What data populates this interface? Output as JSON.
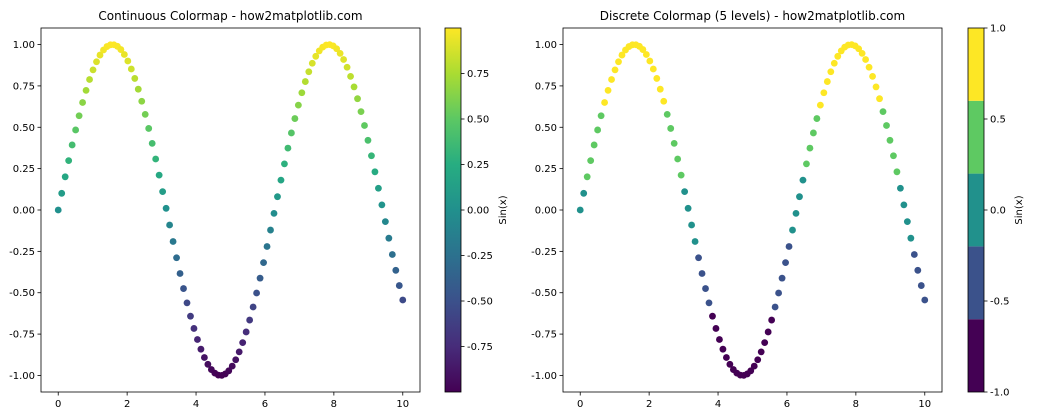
{
  "chart_data": [
    {
      "type": "scatter",
      "title": "Continuous Colormap - how2matplotlib.com",
      "xlabel": "",
      "ylabel": "",
      "xlim": [
        -0.5,
        10.5
      ],
      "ylim": [
        -1.1,
        1.1
      ],
      "x_ticks": [
        0,
        2,
        4,
        6,
        8,
        10
      ],
      "y_ticks": [
        -1.0,
        -0.75,
        -0.5,
        -0.25,
        0.0,
        0.25,
        0.5,
        0.75,
        1.0
      ],
      "y_tick_labels": [
        "-1.00",
        "-0.75",
        "-0.50",
        "-0.25",
        "0.00",
        "0.25",
        "0.50",
        "0.75",
        "1.00"
      ],
      "series": [
        {
          "function": "sin",
          "x_start": 0,
          "x_end": 10,
          "count": 100,
          "color_by": "y"
        }
      ],
      "colormap": "viridis",
      "colorbar": {
        "label": "Sin(x)",
        "type": "continuous",
        "range": [
          -1.0,
          1.0
        ],
        "ticks": [
          -0.75,
          -0.5,
          -0.25,
          0.0,
          0.25,
          0.5,
          0.75
        ],
        "tick_labels": [
          "-0.75",
          "-0.50",
          "-0.25",
          "0.00",
          "0.25",
          "0.50",
          "0.75"
        ]
      },
      "grid": false
    },
    {
      "type": "scatter",
      "title": "Discrete Colormap (5 levels) - how2matplotlib.com",
      "xlabel": "",
      "ylabel": "",
      "xlim": [
        -0.5,
        10.5
      ],
      "ylim": [
        -1.1,
        1.1
      ],
      "x_ticks": [
        0,
        2,
        4,
        6,
        8,
        10
      ],
      "y_ticks": [
        -1.0,
        -0.75,
        -0.5,
        -0.25,
        0.0,
        0.25,
        0.5,
        0.75,
        1.0
      ],
      "y_tick_labels": [
        "-1.00",
        "-0.75",
        "-0.50",
        "-0.25",
        "0.00",
        "0.25",
        "0.50",
        "0.75",
        "1.00"
      ],
      "series": [
        {
          "function": "sin",
          "x_start": 0,
          "x_end": 10,
          "count": 100,
          "color_by": "y"
        }
      ],
      "colormap": "viridis",
      "colorbar": {
        "label": "Sin(x)",
        "type": "discrete",
        "levels": 5,
        "range": [
          -1.0,
          1.0
        ],
        "colors": [
          "#440154",
          "#3b528b",
          "#21918c",
          "#5ec962",
          "#fde725"
        ],
        "ticks": [
          -1.0,
          -0.5,
          0.0,
          0.5,
          1.0
        ],
        "tick_labels": [
          "-1.0",
          "-0.5",
          "0.0",
          "0.5",
          "1.0"
        ]
      },
      "grid": false
    }
  ]
}
